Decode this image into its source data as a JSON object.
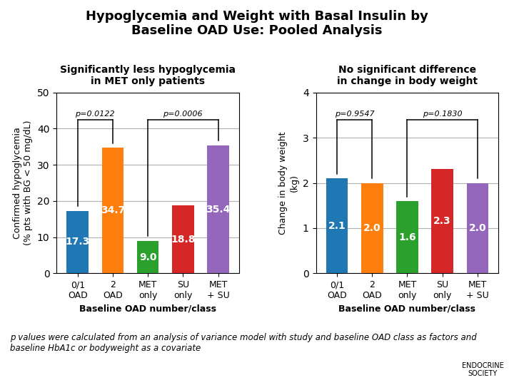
{
  "title": "Hypoglycemia and Weight with Basal Insulin by\nBaseline OAD Use: Pooled Analysis",
  "annotations": [
    "p values were calculated from an analysis of variance model with study and baseline OAD class as factors and baseline HbA1c or bodyweight as a covariate",
    "ENDOCRINE\nSOCIETY"
  ],
  "chart_data": [
    {
      "type": "bar",
      "subtitle": "Significantly less hypoglycemia\nin MET only patients",
      "y_label": "Confirmed hypoglycemia\n(% pts with BG < 50 mg/dL)",
      "x_label": "Baseline OAD number/class",
      "categories": [
        "0/1\nOAD",
        "2\nOAD",
        "MET\nonly",
        "SU\nonly",
        "MET\n+ SU"
      ],
      "values": [
        17.3,
        34.7,
        9.0,
        18.8,
        35.4
      ],
      "colors": [
        "#1f77b4",
        "#ff7f0e",
        "#2ca02c",
        "#d62728",
        "#9467bd"
      ],
      "ylim": [
        0,
        50
      ],
      "yticks": [
        0,
        10,
        20,
        30,
        40,
        50
      ],
      "grid": true,
      "data_labels": true,
      "annotations": [
        {
          "text": "p=0.0122",
          "from": "0/1\nOAD",
          "to": "2\nOAD"
        },
        {
          "text": "p=0.0006",
          "from": "MET\nonly",
          "to": "MET\n+ SU"
        }
      ]
    },
    {
      "type": "bar",
      "subtitle": "No significant difference\nin change in body weight",
      "y_label": "Change in body weight\n(kg)",
      "x_label": "Baseline OAD number/class",
      "categories": [
        "0/1\nOAD",
        "2\nOAD",
        "MET\nonly",
        "SU\nonly",
        "MET\n+ SU"
      ],
      "values": [
        2.1,
        2.0,
        1.6,
        2.3,
        2.0
      ],
      "colors": [
        "#1f77b4",
        "#ff7f0e",
        "#2ca02c",
        "#d62728",
        "#9467bd"
      ],
      "ylim": [
        0,
        4
      ],
      "yticks": [
        0,
        1,
        2,
        3,
        4
      ],
      "grid": true,
      "data_labels": true,
      "annotations": [
        {
          "text": "p=0.9547",
          "from": "0/1\nOAD",
          "to": "2\nOAD"
        },
        {
          "text": "p=0.1830",
          "from": "MET\nonly",
          "to": "MET\n+ SU"
        }
      ]
    }
  ]
}
